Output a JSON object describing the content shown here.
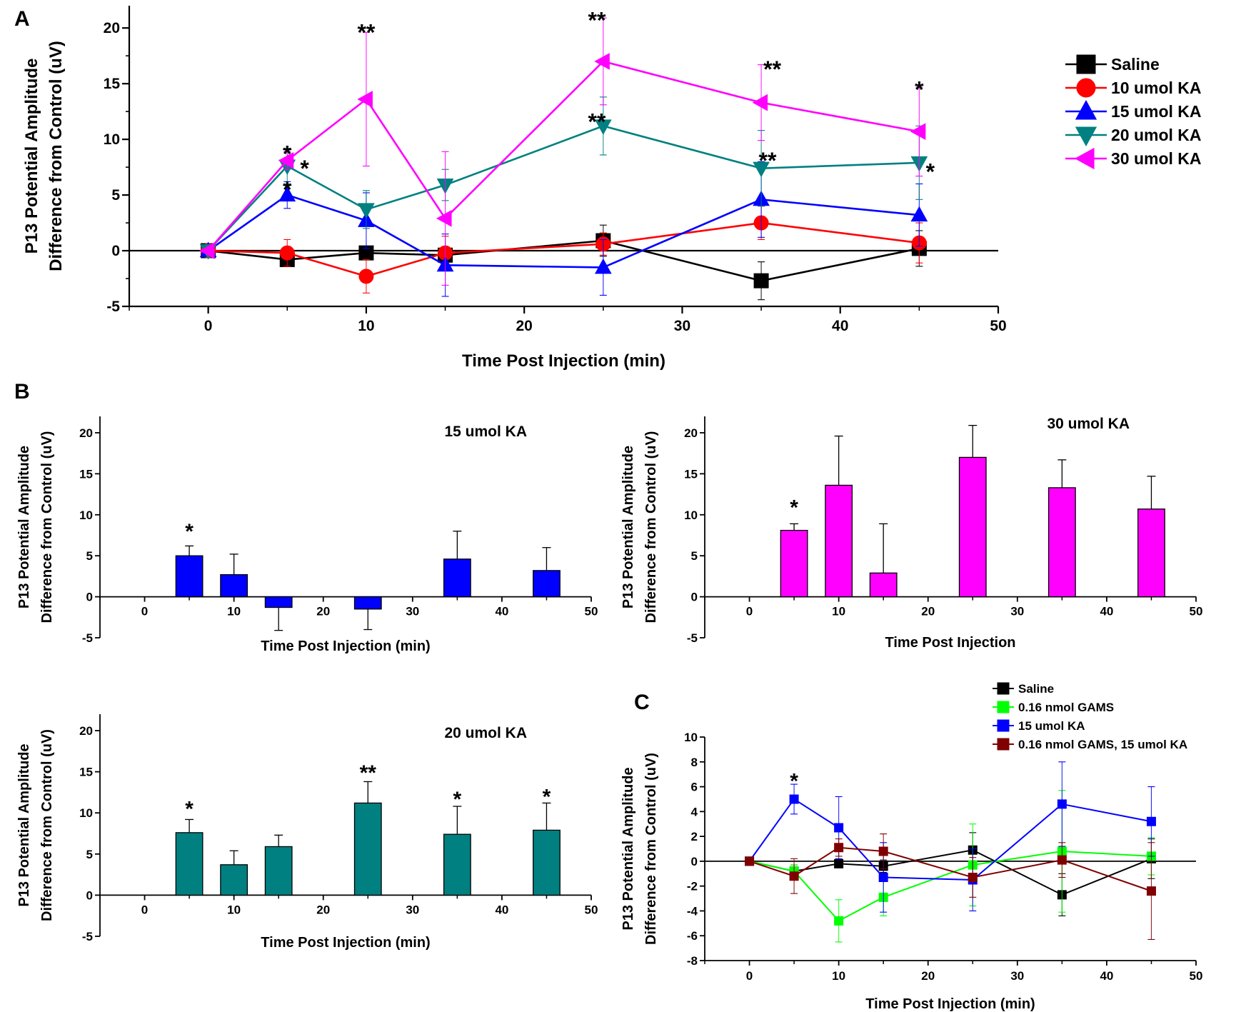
{
  "panel_labels": {
    "a": "A",
    "b": "B",
    "c": "C"
  },
  "colors": {
    "saline": "#000000",
    "ka10": "#ff0000",
    "ka15": "#0000ff",
    "ka20": "#008080",
    "ka30": "#ff00ff",
    "gams": "#00ff00",
    "gams_ka": "#800000"
  },
  "chart_data": [
    {
      "id": "panel-a",
      "type": "line",
      "panel": "A",
      "title": "",
      "xlabel": "Time Post Injection (min)",
      "ylabel": "P13 Potential Amplitude Difference from Control (uV)",
      "ylabel_lines": [
        "P13 Potential Amplitude",
        "Difference from Control (uV)"
      ],
      "xlim": [
        -5,
        50
      ],
      "ylim": [
        -5,
        22
      ],
      "xticks": [
        0,
        10,
        20,
        30,
        40,
        50
      ],
      "yticks": [
        -5,
        0,
        5,
        10,
        15,
        20
      ],
      "legend": "top-right",
      "series": [
        {
          "name": "Saline",
          "color": "#000000",
          "marker": "square",
          "x": [
            0,
            5,
            10,
            15,
            25,
            35,
            45
          ],
          "y": [
            0,
            -0.8,
            -0.2,
            -0.4,
            0.9,
            -2.7,
            0.2
          ],
          "err": [
            0,
            0.5,
            0.3,
            0.5,
            1.4,
            1.7,
            1.6
          ]
        },
        {
          "name": "10 umol KA",
          "color": "#ff0000",
          "marker": "circle",
          "x": [
            0,
            5,
            10,
            15,
            25,
            35,
            45
          ],
          "y": [
            0,
            -0.2,
            -2.3,
            -0.2,
            0.6,
            2.5,
            0.7
          ],
          "err": [
            0,
            1.2,
            1.5,
            1.5,
            1.0,
            1.5,
            1.8
          ]
        },
        {
          "name": "15 umol KA",
          "color": "#0000ff",
          "marker": "triangle-up",
          "x": [
            0,
            5,
            10,
            15,
            25,
            35,
            45
          ],
          "y": [
            0,
            5.0,
            2.7,
            -1.3,
            -1.5,
            4.6,
            3.2
          ],
          "err": [
            0,
            1.2,
            2.5,
            2.8,
            2.5,
            3.4,
            2.8
          ]
        },
        {
          "name": "20 umol KA",
          "color": "#008080",
          "marker": "triangle-down",
          "x": [
            0,
            5,
            10,
            15,
            25,
            35,
            45
          ],
          "y": [
            0,
            7.6,
            3.7,
            5.9,
            11.2,
            7.4,
            7.9
          ],
          "err": [
            0,
            1.6,
            1.7,
            1.4,
            2.6,
            3.4,
            3.3
          ]
        },
        {
          "name": "30 umol KA",
          "color": "#ff00ff",
          "marker": "triangle-left",
          "x": [
            0,
            5,
            10,
            15,
            25,
            35,
            45
          ],
          "y": [
            0,
            8.1,
            13.6,
            2.9,
            17.0,
            13.3,
            10.7
          ],
          "err": [
            0,
            0.8,
            6.0,
            6.0,
            3.9,
            3.4,
            4.0
          ]
        }
      ],
      "annotations": [
        {
          "x": 5,
          "y": 9.0,
          "text": "*"
        },
        {
          "x": 6.1,
          "y": 7.7,
          "text": "*"
        },
        {
          "x": 5,
          "y": 5.8,
          "text": "*"
        },
        {
          "x": 10,
          "y": 19.9,
          "text": "**"
        },
        {
          "x": 24.6,
          "y": 21.0,
          "text": "**"
        },
        {
          "x": 24.6,
          "y": 11.9,
          "text": "**"
        },
        {
          "x": 35.7,
          "y": 16.6,
          "text": "**"
        },
        {
          "x": 35.4,
          "y": 8.4,
          "text": "**"
        },
        {
          "x": 45,
          "y": 14.8,
          "text": "*"
        },
        {
          "x": 45.7,
          "y": 7.4,
          "text": "*"
        }
      ]
    },
    {
      "id": "panel-b1",
      "type": "bar",
      "panel": "B",
      "title": "15 umol KA",
      "xlabel": "Time Post Injection (min)",
      "ylabel": "P13 Potential Amplitude Difference from Control (uV)",
      "ylabel_lines": [
        "P13 Potential Amplitude",
        "Difference from Control (uV)"
      ],
      "xlim": [
        -5,
        50
      ],
      "ylim": [
        -5,
        22
      ],
      "xticks": [
        0,
        10,
        20,
        30,
        40,
        50
      ],
      "yticks": [
        -5,
        0,
        5,
        10,
        15,
        20
      ],
      "color": "#0000ff",
      "x": [
        5,
        10,
        15,
        25,
        35,
        45
      ],
      "values": [
        5.0,
        2.7,
        -1.3,
        -1.5,
        4.6,
        3.2
      ],
      "err": [
        1.2,
        2.5,
        2.8,
        2.5,
        3.4,
        2.8
      ],
      "annotations": [
        {
          "x": 5,
          "y": 8.5,
          "text": "*"
        }
      ]
    },
    {
      "id": "panel-b2",
      "type": "bar",
      "panel": "B",
      "title": "30 umol KA",
      "xlabel": "Time Post Injection",
      "ylabel": "P13 Potential Amplitude Difference from Control (uV)",
      "ylabel_lines": [
        "P13 Potential Amplitude",
        "Difference from Control (uV)"
      ],
      "xlim": [
        -5,
        50
      ],
      "ylim": [
        -5,
        22
      ],
      "xticks": [
        0,
        10,
        20,
        30,
        40,
        50
      ],
      "yticks": [
        -5,
        0,
        5,
        10,
        15,
        20
      ],
      "color": "#ff00ff",
      "x": [
        5,
        10,
        15,
        25,
        35,
        45
      ],
      "values": [
        8.1,
        13.6,
        2.9,
        17.0,
        13.3,
        10.7
      ],
      "err": [
        0.8,
        6.0,
        6.0,
        3.9,
        3.4,
        4.0
      ],
      "annotations": [
        {
          "x": 5,
          "y": 11.4,
          "text": "*"
        }
      ]
    },
    {
      "id": "panel-b3",
      "type": "bar",
      "panel": "B",
      "title": "20 umol KA",
      "xlabel": "Time Post Injection (min)",
      "ylabel": "P13 Potential Amplitude Difference from Control (uV)",
      "ylabel_lines": [
        "P13 Potential Amplitude",
        "Difference from Control (uV)"
      ],
      "xlim": [
        -5,
        50
      ],
      "ylim": [
        -5,
        22
      ],
      "xticks": [
        0,
        10,
        20,
        30,
        40,
        50
      ],
      "yticks": [
        -5,
        0,
        5,
        10,
        15,
        20
      ],
      "color": "#008080",
      "x": [
        5,
        10,
        15,
        25,
        35,
        45
      ],
      "values": [
        7.6,
        3.7,
        5.9,
        11.2,
        7.4,
        7.9
      ],
      "err": [
        1.6,
        1.7,
        1.4,
        2.6,
        3.4,
        3.3
      ],
      "annotations": [
        {
          "x": 5,
          "y": 11.0,
          "text": "*"
        },
        {
          "x": 25,
          "y": 15.4,
          "text": "**"
        },
        {
          "x": 35,
          "y": 12.2,
          "text": "*"
        },
        {
          "x": 45,
          "y": 12.5,
          "text": "*"
        }
      ]
    },
    {
      "id": "panel-c",
      "type": "line",
      "panel": "C",
      "title": "",
      "xlabel": "Time Post Injection (min)",
      "ylabel": "P13 Potential Amplitude Difference from Control (uV)",
      "ylabel_lines": [
        "P13 Potential Amplitude",
        "Difference from Control (uV)"
      ],
      "xlim": [
        -5,
        50
      ],
      "ylim": [
        -8,
        10
      ],
      "xticks": [
        0,
        10,
        20,
        30,
        40,
        50
      ],
      "yticks": [
        -8,
        -6,
        -4,
        -2,
        0,
        2,
        4,
        6,
        8,
        10
      ],
      "legend": "top-right",
      "series": [
        {
          "name": "Saline",
          "color": "#000000",
          "marker": "square",
          "x": [
            0,
            5,
            10,
            15,
            25,
            35,
            45
          ],
          "y": [
            0,
            -0.8,
            -0.2,
            -0.4,
            0.9,
            -2.7,
            0.2
          ],
          "err": [
            0,
            0.5,
            0.3,
            0.5,
            1.4,
            1.7,
            1.6
          ]
        },
        {
          "name": "0.16 nmol GAMS",
          "color": "#00ff00",
          "marker": "square",
          "x": [
            0,
            5,
            10,
            15,
            25,
            35,
            45
          ],
          "y": [
            0,
            -0.8,
            -4.8,
            -2.9,
            -0.3,
            0.8,
            0.4
          ],
          "err": [
            0,
            0.5,
            1.7,
            1.5,
            3.3,
            4.9,
            1.5
          ]
        },
        {
          "name": "15 umol KA",
          "color": "#0000ff",
          "marker": "square",
          "x": [
            0,
            5,
            10,
            15,
            25,
            35,
            45
          ],
          "y": [
            0,
            5.0,
            2.7,
            -1.3,
            -1.5,
            4.6,
            3.2
          ],
          "err": [
            0,
            1.2,
            2.5,
            2.8,
            2.5,
            3.4,
            2.8
          ]
        },
        {
          "name": "0.16 nmol GAMS, 15 umol KA",
          "color": "#800000",
          "marker": "square",
          "x": [
            0,
            5,
            10,
            15,
            25,
            35,
            45
          ],
          "y": [
            0,
            -1.2,
            1.1,
            0.8,
            -1.3,
            0.1,
            -2.4
          ],
          "err": [
            0,
            1.4,
            0.7,
            1.4,
            1.6,
            1.4,
            3.9
          ]
        }
      ],
      "annotations": [
        {
          "x": 5,
          "y": 6.8,
          "text": "*"
        }
      ]
    }
  ]
}
